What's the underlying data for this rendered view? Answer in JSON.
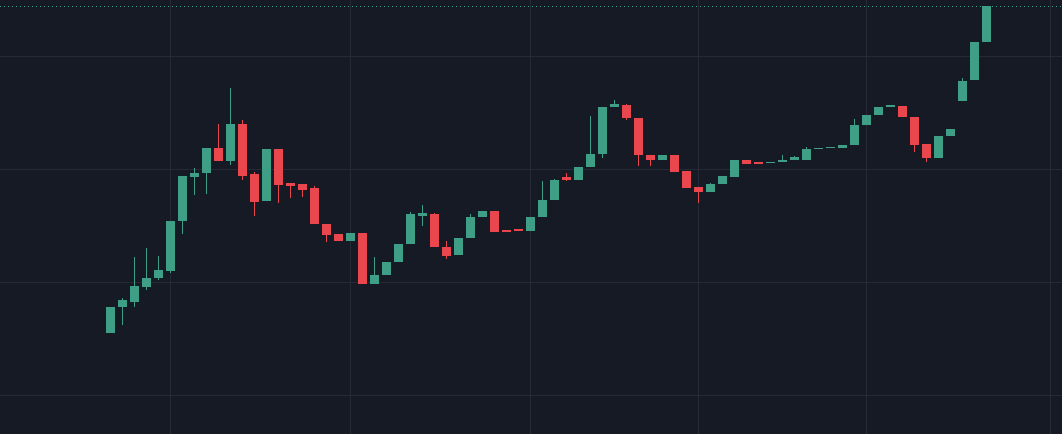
{
  "chart_data": {
    "type": "candlestick",
    "open": [
      101,
      127,
      132,
      147,
      156,
      163,
      213,
      257,
      261,
      286,
      273,
      310,
      260,
      233,
      285,
      251,
      250,
      246,
      210,
      200,
      193,
      201,
      150,
      159,
      172,
      190,
      218,
      220,
      187,
      179,
      196,
      217,
      223,
      204,
      205,
      203,
      217,
      234,
      257,
      254,
      267,
      280,
      327,
      329,
      316,
      279,
      274,
      279,
      263,
      247,
      242,
      250,
      257,
      274,
      272,
      271,
      272,
      274,
      274,
      285,
      286,
      286,
      289,
      309,
      319,
      327,
      328,
      317,
      290,
      276,
      298,
      333,
      354,
      392
    ],
    "high": [
      127,
      136,
      177,
      186,
      178,
      213,
      258,
      266,
      286,
      310,
      346,
      314,
      262,
      285,
      285,
      251,
      250,
      248,
      210,
      200,
      201,
      201,
      177,
      172,
      190,
      222,
      229,
      221,
      193,
      196,
      220,
      223,
      223,
      204,
      205,
      217,
      253,
      255,
      261,
      267,
      318,
      327,
      334,
      330,
      316,
      279,
      279,
      279,
      263,
      247,
      251,
      258,
      274,
      274,
      272,
      272,
      279,
      278,
      287,
      286,
      287,
      289,
      315,
      319,
      327,
      329,
      328,
      317,
      290,
      298,
      305,
      356,
      392,
      428
    ],
    "low": [
      101,
      109,
      127,
      144,
      154,
      161,
      200,
      239,
      240,
      273,
      269,
      254,
      218,
      233,
      231,
      236,
      237,
      210,
      192,
      193,
      193,
      150,
      150,
      159,
      172,
      190,
      208,
      187,
      175,
      179,
      196,
      217,
      202,
      202,
      203,
      203,
      217,
      234,
      253,
      254,
      267,
      276,
      327,
      314,
      268,
      268,
      274,
      262,
      246,
      231,
      242,
      250,
      257,
      270,
      270,
      271,
      272,
      274,
      274,
      285,
      286,
      286,
      289,
      309,
      319,
      327,
      317,
      282,
      272,
      276,
      298,
      333,
      354,
      392
    ],
    "close": [
      127,
      134,
      148,
      156,
      164,
      213,
      258,
      261,
      286,
      273,
      310,
      258,
      232,
      285,
      249,
      248,
      244,
      210,
      199,
      193,
      201,
      150,
      159,
      172,
      190,
      220,
      221,
      187,
      178,
      196,
      217,
      223,
      202,
      202,
      203,
      217,
      234,
      254,
      254,
      267,
      280,
      327,
      330,
      316,
      279,
      274,
      279,
      262,
      246,
      242,
      250,
      258,
      274,
      270,
      270,
      272,
      274,
      277,
      285,
      286,
      287,
      289,
      309,
      319,
      327,
      329,
      317,
      289,
      276,
      298,
      305,
      353,
      392,
      428
    ],
    "up_color": "#3f9e86",
    "down_color": "#e9474d",
    "ylim": [
      0,
      434
    ],
    "yticks": [
      39,
      152,
      265,
      378
    ],
    "grid": true
  }
}
